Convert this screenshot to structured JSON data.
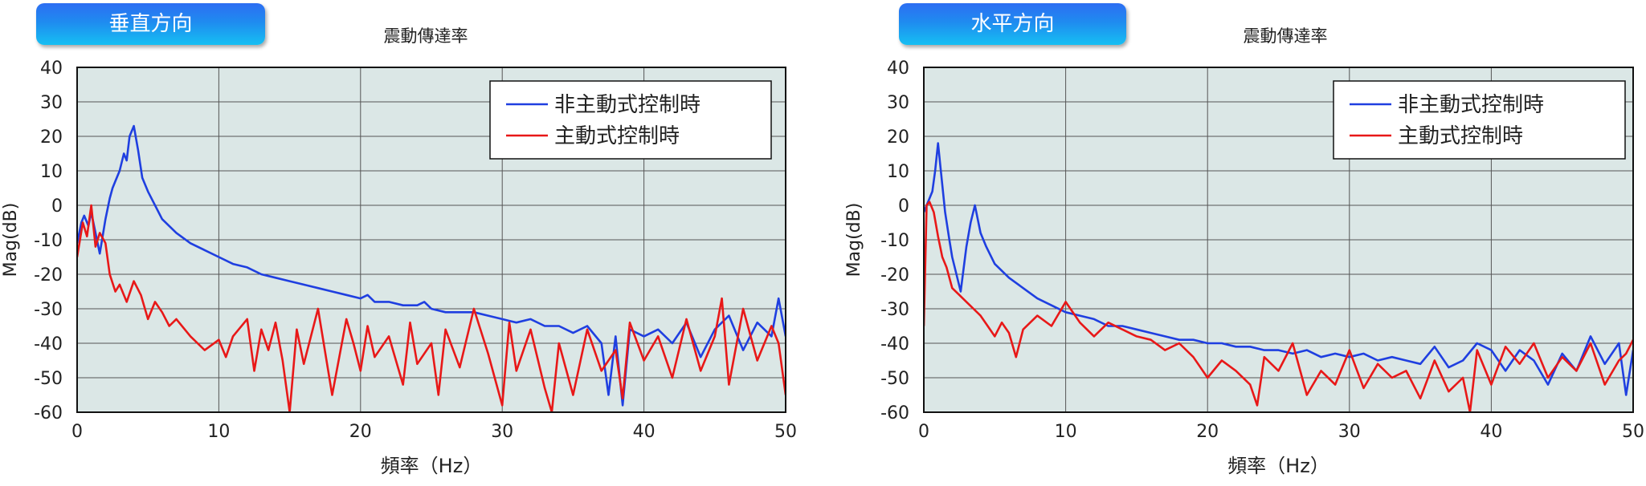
{
  "chart_data": [
    {
      "type": "line",
      "panel_label": "垂直方向",
      "title": "震動傳達率",
      "xlabel": "頻率（Hz）",
      "ylabel": "Mag(dB)",
      "xlim": [
        0,
        50
      ],
      "ylim": [
        -60,
        40
      ],
      "xticks": [
        0,
        10,
        20,
        30,
        40,
        50
      ],
      "yticks": [
        40,
        30,
        20,
        10,
        0,
        -10,
        -20,
        -30,
        -40,
        -50,
        -60
      ],
      "grid": true,
      "legend_position": "top-right",
      "series": [
        {
          "name": "非主動式控制時",
          "color": "#1f3fe0",
          "x": [
            0,
            0.3,
            0.5,
            0.8,
            1.0,
            1.3,
            1.6,
            2.0,
            2.3,
            2.5,
            2.7,
            3.0,
            3.3,
            3.5,
            3.7,
            4.0,
            4.3,
            4.6,
            5.0,
            5.5,
            6,
            7,
            8,
            9,
            10,
            11,
            12,
            13,
            14,
            15,
            16,
            17,
            18,
            19,
            20,
            20.5,
            21,
            22,
            23,
            24,
            24.5,
            25,
            26,
            27,
            28,
            29,
            30,
            31,
            32,
            33,
            34,
            35,
            36,
            37,
            37.5,
            38,
            38.5,
            39,
            40,
            41,
            42,
            43,
            44,
            45,
            46,
            47,
            48,
            49,
            49.5,
            50
          ],
          "y": [
            -11,
            -5,
            -3,
            -6,
            -2,
            -8,
            -14,
            -4,
            2,
            5,
            7,
            10,
            15,
            13,
            20,
            23,
            16,
            8,
            4,
            0,
            -4,
            -8,
            -11,
            -13,
            -15,
            -17,
            -18,
            -20,
            -21,
            -22,
            -23,
            -24,
            -25,
            -26,
            -27,
            -26,
            -28,
            -28,
            -29,
            -29,
            -28,
            -30,
            -31,
            -31,
            -31,
            -32,
            -33,
            -34,
            -33,
            -35,
            -35,
            -37,
            -35,
            -40,
            -55,
            -38,
            -58,
            -36,
            -38,
            -36,
            -40,
            -34,
            -44,
            -36,
            -32,
            -42,
            -34,
            -38,
            -27,
            -38
          ]
        },
        {
          "name": "主動式控制時",
          "color": "#e81818",
          "x": [
            0,
            0.4,
            0.7,
            1.0,
            1.3,
            1.6,
            2.0,
            2.3,
            2.7,
            3.0,
            3.5,
            4.0,
            4.5,
            5.0,
            5.5,
            6,
            6.5,
            7,
            8,
            9,
            10,
            10.5,
            11,
            12,
            12.5,
            13,
            13.5,
            14,
            14.5,
            15,
            15.5,
            16,
            17,
            18,
            19,
            19.5,
            20,
            20.5,
            21,
            22,
            23,
            23.5,
            24,
            25,
            25.5,
            26,
            27,
            28,
            29,
            30,
            30.5,
            31,
            32,
            33,
            33.5,
            34,
            35,
            36,
            37,
            38,
            38.5,
            39,
            40,
            41,
            42,
            43,
            44,
            45,
            45.5,
            46,
            47,
            48,
            49,
            49.5,
            50
          ],
          "y": [
            -15,
            -5,
            -9,
            0,
            -12,
            -8,
            -11,
            -20,
            -25,
            -23,
            -28,
            -22,
            -26,
            -33,
            -28,
            -31,
            -35,
            -33,
            -38,
            -42,
            -39,
            -44,
            -38,
            -33,
            -48,
            -36,
            -42,
            -34,
            -45,
            -60,
            -36,
            -46,
            -30,
            -55,
            -33,
            -40,
            -48,
            -35,
            -44,
            -38,
            -52,
            -34,
            -46,
            -40,
            -55,
            -36,
            -47,
            -30,
            -43,
            -58,
            -34,
            -48,
            -36,
            -53,
            -60,
            -40,
            -55,
            -36,
            -48,
            -42,
            -56,
            -34,
            -45,
            -38,
            -50,
            -33,
            -48,
            -38,
            -27,
            -52,
            -30,
            -45,
            -35,
            -40,
            -55
          ]
        }
      ]
    },
    {
      "type": "line",
      "panel_label": "水平方向",
      "title": "震動傳達率",
      "xlabel": "頻率（Hz）",
      "ylabel": "Mag(dB)",
      "xlim": [
        0,
        50
      ],
      "ylim": [
        -60,
        40
      ],
      "xticks": [
        0,
        10,
        20,
        30,
        40,
        50
      ],
      "yticks": [
        40,
        30,
        20,
        10,
        0,
        -10,
        -20,
        -30,
        -40,
        -50,
        -60
      ],
      "grid": true,
      "legend_position": "top-right",
      "series": [
        {
          "name": "非主動式控制時",
          "color": "#1f3fe0",
          "x": [
            0,
            0.2,
            0.4,
            0.6,
            0.8,
            1.0,
            1.2,
            1.5,
            1.8,
            2.0,
            2.3,
            2.6,
            3.0,
            3.3,
            3.6,
            4.0,
            4.4,
            5,
            6,
            7,
            8,
            9,
            10,
            11,
            12,
            13,
            14,
            15,
            16,
            17,
            18,
            19,
            20,
            21,
            22,
            23,
            24,
            25,
            26,
            27,
            28,
            29,
            30,
            31,
            32,
            33,
            34,
            35,
            36,
            37,
            38,
            39,
            40,
            41,
            42,
            43,
            44,
            45,
            46,
            47,
            48,
            49,
            49.5,
            50
          ],
          "y": [
            -2,
            0,
            2,
            4,
            10,
            18,
            10,
            -2,
            -10,
            -15,
            -20,
            -25,
            -12,
            -5,
            0,
            -8,
            -12,
            -17,
            -21,
            -24,
            -27,
            -29,
            -31,
            -32,
            -33,
            -35,
            -35,
            -36,
            -37,
            -38,
            -39,
            -39,
            -40,
            -40,
            -41,
            -41,
            -42,
            -42,
            -43,
            -42,
            -44,
            -43,
            -44,
            -43,
            -45,
            -44,
            -45,
            -46,
            -41,
            -47,
            -45,
            -40,
            -42,
            -48,
            -42,
            -45,
            -52,
            -43,
            -48,
            -38,
            -46,
            -40,
            -55,
            -42
          ]
        },
        {
          "name": "主動式控制時",
          "color": "#e81818",
          "x": [
            0,
            0.2,
            0.4,
            0.7,
            1.0,
            1.3,
            1.6,
            2.0,
            2.5,
            3.0,
            3.5,
            4.0,
            4.5,
            5,
            5.5,
            6,
            6.5,
            7,
            8,
            9,
            10,
            11,
            12,
            13,
            14,
            15,
            16,
            17,
            18,
            19,
            20,
            21,
            22,
            23,
            23.5,
            24,
            25,
            26,
            27,
            28,
            29,
            30,
            31,
            32,
            33,
            34,
            35,
            36,
            37,
            38,
            38.5,
            39,
            40,
            41,
            42,
            43,
            44,
            45,
            46,
            47,
            48,
            49,
            49.5,
            50
          ],
          "y": [
            -35,
            0,
            1,
            -2,
            -9,
            -15,
            -18,
            -24,
            -26,
            -28,
            -30,
            -32,
            -35,
            -38,
            -34,
            -37,
            -44,
            -36,
            -32,
            -35,
            -28,
            -34,
            -38,
            -34,
            -36,
            -38,
            -39,
            -42,
            -40,
            -44,
            -50,
            -45,
            -48,
            -52,
            -58,
            -44,
            -48,
            -40,
            -55,
            -48,
            -52,
            -42,
            -53,
            -46,
            -50,
            -48,
            -56,
            -45,
            -54,
            -50,
            -60,
            -42,
            -52,
            -41,
            -46,
            -40,
            -50,
            -44,
            -48,
            -40,
            -52,
            -45,
            -43,
            -39
          ]
        }
      ]
    }
  ]
}
